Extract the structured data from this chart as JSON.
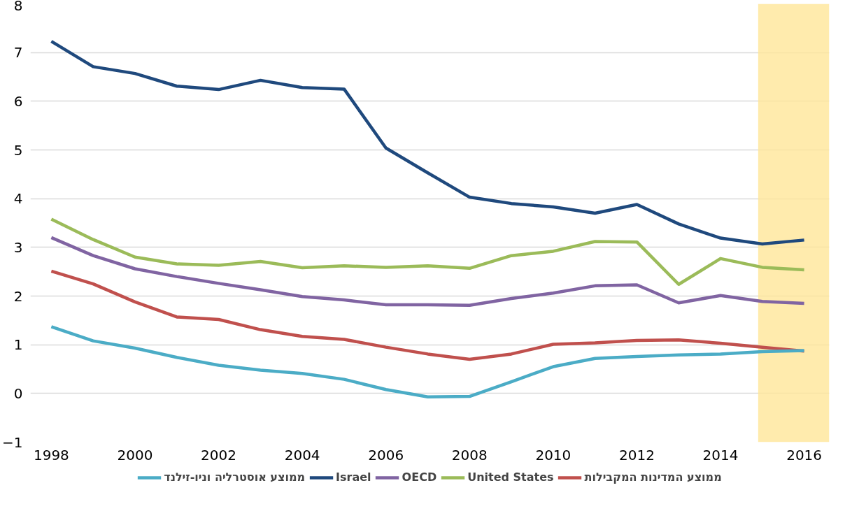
{
  "chart_data": {
    "type": "line",
    "x": [
      1998,
      1999,
      2000,
      2001,
      2002,
      2003,
      2004,
      2005,
      2006,
      2007,
      2008,
      2009,
      2010,
      2011,
      2012,
      2013,
      2014,
      2015,
      2016
    ],
    "series": [
      {
        "name": "ממוצע אוסטרליה וניו-זילנד",
        "color": "#4bacc6",
        "values": [
          1.37,
          1.08,
          0.93,
          0.74,
          0.58,
          0.48,
          0.41,
          0.29,
          0.08,
          -0.07,
          -0.06,
          0.24,
          0.55,
          0.72,
          0.76,
          0.79,
          0.81,
          0.86,
          0.88
        ]
      },
      {
        "name": "Israel",
        "color": "#1f497d",
        "values": [
          7.23,
          6.71,
          6.57,
          6.31,
          6.24,
          6.43,
          6.28,
          6.25,
          5.04,
          4.53,
          4.03,
          3.9,
          3.83,
          3.7,
          3.88,
          3.48,
          3.19,
          3.07,
          3.15
        ]
      },
      {
        "name": "OECD",
        "color": "#8064a2",
        "values": [
          3.2,
          2.83,
          2.56,
          2.4,
          2.26,
          2.13,
          1.99,
          1.92,
          1.82,
          1.82,
          1.81,
          1.95,
          2.06,
          2.21,
          2.23,
          1.86,
          2.01,
          1.89,
          1.85
        ]
      },
      {
        "name": "United States",
        "color": "#9bbb59",
        "values": [
          3.58,
          3.16,
          2.8,
          2.66,
          2.63,
          2.71,
          2.58,
          2.62,
          2.59,
          2.62,
          2.57,
          2.83,
          2.92,
          3.12,
          3.11,
          2.24,
          2.77,
          2.59,
          2.54
        ]
      },
      {
        "name": "ממוצע המדינות המקבילות",
        "color": "#c0504d",
        "values": [
          2.51,
          2.25,
          1.88,
          1.57,
          1.52,
          1.31,
          1.17,
          1.11,
          0.95,
          0.81,
          0.7,
          0.81,
          1.01,
          1.04,
          1.09,
          1.1,
          1.03,
          0.95,
          0.87
        ]
      }
    ],
    "xlim": [
      1997.5,
      2016.6
    ],
    "xticks": [
      1998,
      2000,
      2002,
      2004,
      2006,
      2008,
      2010,
      2012,
      2014,
      2016
    ],
    "ylim": [
      -1,
      8
    ],
    "yticks": [
      -1,
      0,
      1,
      2,
      3,
      4,
      5,
      6,
      7,
      8
    ],
    "bands": [
      {
        "axis": "x",
        "from": 2014.9,
        "to": 2016.6,
        "color": "#ffe699"
      }
    ],
    "grid": "y",
    "legend": "bottom",
    "marker": "none",
    "line_style": "solid"
  }
}
